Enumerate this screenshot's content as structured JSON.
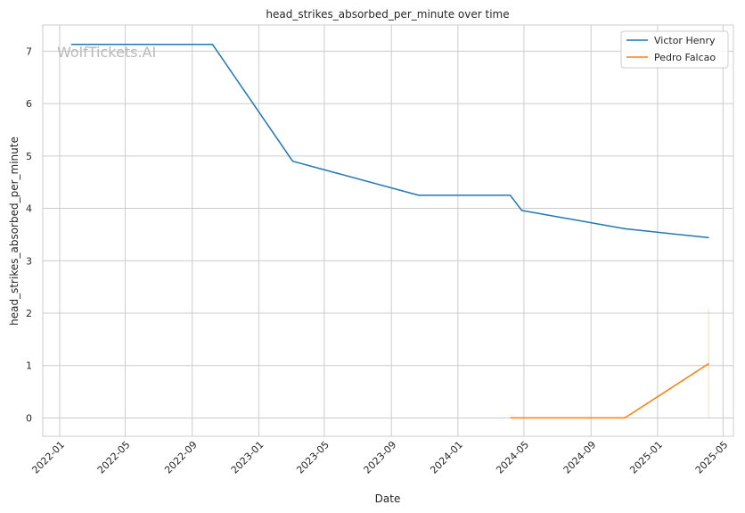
{
  "chart_data": {
    "type": "line",
    "title": "head_strikes_absorbed_per_minute over time",
    "xlabel": "Date",
    "ylabel": "head_strikes_absorbed_per_minute",
    "watermark": "WolfTickets.AI",
    "xlim": [
      "2021-12-01",
      "2025-05-20"
    ],
    "ylim": [
      -0.35,
      7.5
    ],
    "x_ticks": [
      "2022-01",
      "2022-05",
      "2022-09",
      "2023-01",
      "2023-05",
      "2023-09",
      "2024-01",
      "2024-05",
      "2024-09",
      "2025-01",
      "2025-05"
    ],
    "y_ticks": [
      0,
      1,
      2,
      3,
      4,
      5,
      6,
      7
    ],
    "grid": true,
    "legend_position": "top-right",
    "series": [
      {
        "name": "Victor Henry",
        "color": "#1f77b4",
        "x": [
          "2022-01-22",
          "2022-10-08",
          "2023-03-04",
          "2023-10-21",
          "2024-04-06",
          "2024-04-27",
          "2024-11-02",
          "2025-04-05"
        ],
        "y": [
          7.13,
          7.13,
          4.9,
          4.25,
          4.25,
          3.96,
          3.61,
          3.44
        ]
      },
      {
        "name": "Pedro Falcao",
        "color": "#ff7f0e",
        "x": [
          "2024-04-06",
          "2024-11-02",
          "2025-04-05"
        ],
        "y": [
          0.0,
          0.0,
          1.04
        ]
      }
    ]
  }
}
